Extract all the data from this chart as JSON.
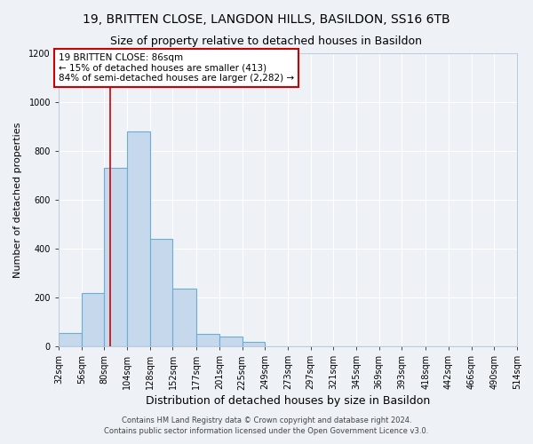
{
  "title1": "19, BRITTEN CLOSE, LANGDON HILLS, BASILDON, SS16 6TB",
  "title2": "Size of property relative to detached houses in Basildon",
  "xlabel": "Distribution of detached houses by size in Basildon",
  "ylabel": "Number of detached properties",
  "bar_edges": [
    32,
    56,
    80,
    104,
    128,
    152,
    177,
    201,
    225,
    249,
    273,
    297,
    321,
    345,
    369,
    393,
    418,
    442,
    466,
    490,
    514
  ],
  "bar_heights": [
    55,
    220,
    730,
    880,
    440,
    235,
    50,
    40,
    20,
    0,
    0,
    0,
    0,
    0,
    0,
    0,
    0,
    0,
    0,
    0
  ],
  "bar_color": "#c5d8ec",
  "bar_edgecolor": "#6aaed6",
  "bar_linewidth": 0.8,
  "vline_x": 86,
  "vline_color": "#cc0000",
  "annotation_text": "19 BRITTEN CLOSE: 86sqm\n← 15% of detached houses are smaller (413)\n84% of semi-detached houses are larger (2,282) →",
  "annotation_box_edgecolor": "#cc0000",
  "annotation_box_facecolor": "#ffffff",
  "ylim": [
    0,
    1200
  ],
  "yticks": [
    0,
    200,
    400,
    600,
    800,
    1000,
    1200
  ],
  "tick_labels": [
    "32sqm",
    "56sqm",
    "80sqm",
    "104sqm",
    "128sqm",
    "152sqm",
    "177sqm",
    "201sqm",
    "225sqm",
    "249sqm",
    "273sqm",
    "297sqm",
    "321sqm",
    "345sqm",
    "369sqm",
    "393sqm",
    "418sqm",
    "442sqm",
    "466sqm",
    "490sqm",
    "514sqm"
  ],
  "footer1": "Contains HM Land Registry data © Crown copyright and database right 2024.",
  "footer2": "Contains public sector information licensed under the Open Government Licence v3.0.",
  "bg_color": "#eef2f7",
  "grid_color": "#ffffff",
  "title1_fontsize": 10,
  "title2_fontsize": 9,
  "xlabel_fontsize": 9,
  "ylabel_fontsize": 8,
  "tick_fontsize": 7,
  "footer_fontsize": 6,
  "annot_fontsize": 7.5
}
